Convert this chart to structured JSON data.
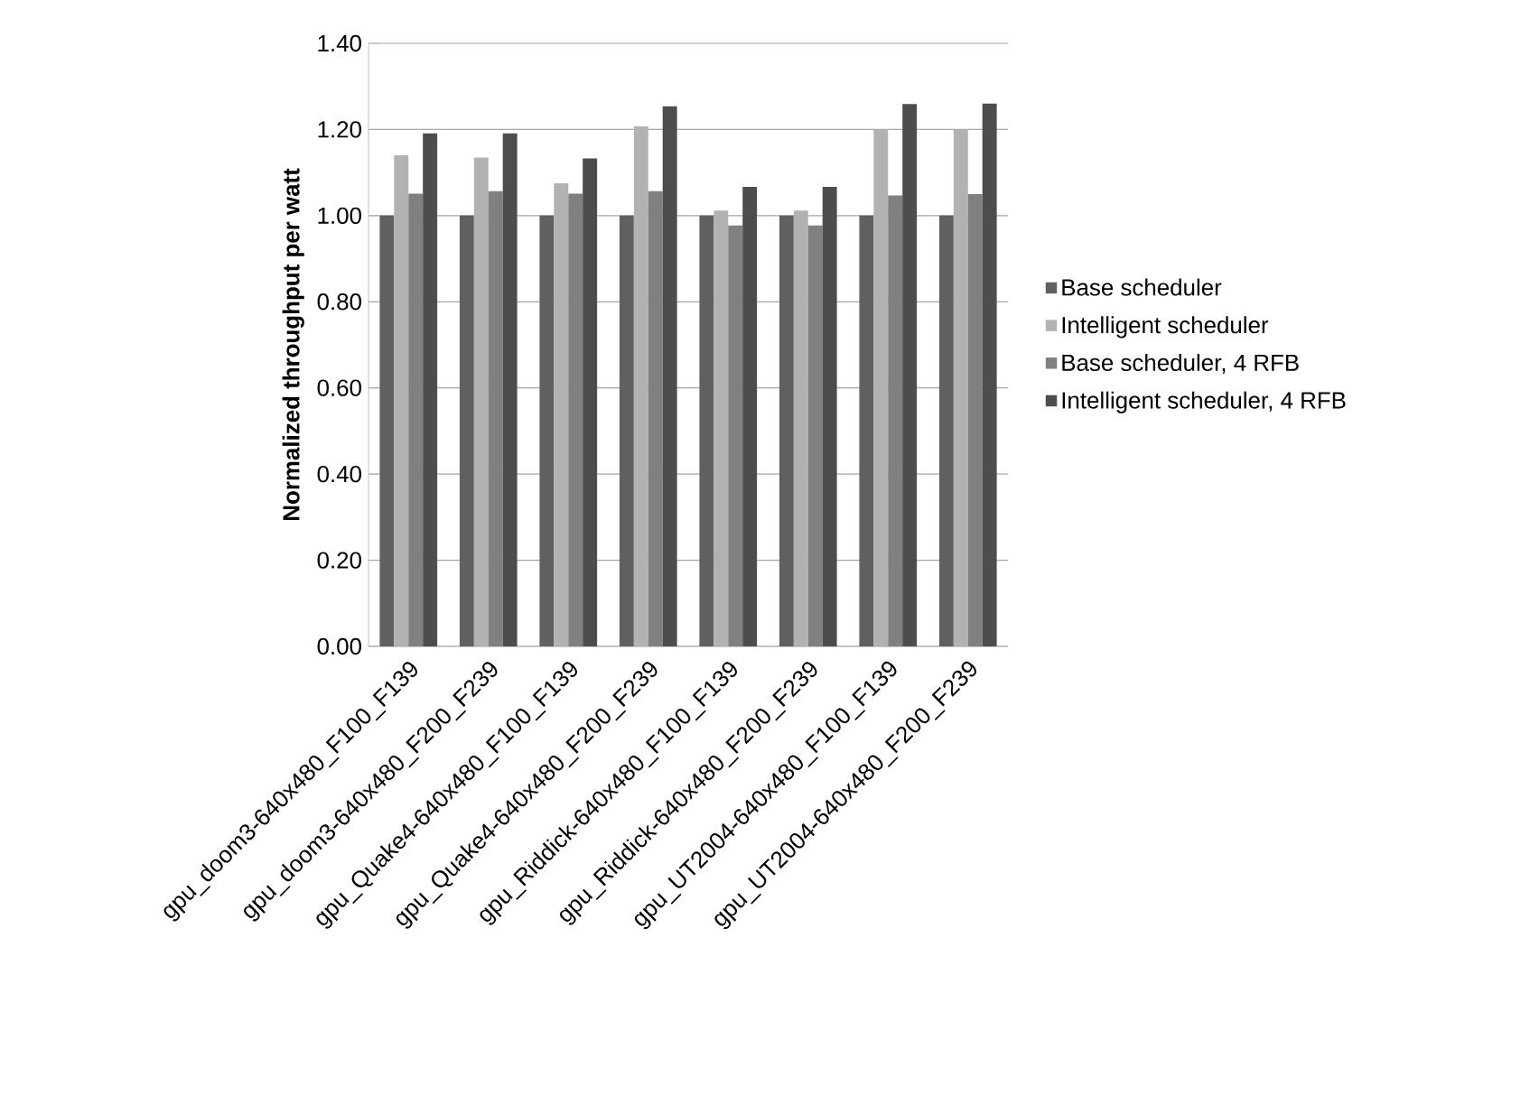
{
  "chart_data": {
    "type": "bar",
    "ylabel": "Normalized throughput per watt",
    "categories": [
      "gpu_doom3-640x480_F100_F139",
      "gpu_doom3-640x480_F200_F239",
      "gpu_Quake4-640x480_F100_F139",
      "gpu_Quake4-640x480_F200_F239",
      "gpu_Riddick-640x480_F100_F139",
      "gpu_Riddick-640x480_F200_F239",
      "gpu_UT2004-640x480_F100_F139",
      "gpu_UT2004-640x480_F200_F239"
    ],
    "series": [
      {
        "name": "Base scheduler",
        "color": "#606060",
        "values": [
          1.0,
          1.0,
          1.0,
          1.0,
          1.0,
          1.0,
          1.0,
          1.0
        ]
      },
      {
        "name": "Intelligent scheduler",
        "color": "#b2b2b2",
        "values": [
          1.14,
          1.135,
          1.075,
          1.207,
          1.012,
          1.012,
          1.2,
          1.2
        ]
      },
      {
        "name": "Base scheduler, 4 RFB",
        "color": "#808080",
        "values": [
          1.051,
          1.057,
          1.051,
          1.057,
          0.977,
          0.977,
          1.047,
          1.05
        ]
      },
      {
        "name": "Intelligent scheduler, 4 RFB",
        "color": "#4d4d4d",
        "values": [
          1.191,
          1.191,
          1.133,
          1.254,
          1.067,
          1.067,
          1.259,
          1.26
        ]
      }
    ],
    "ylim": [
      0,
      1.4
    ],
    "yticks": [
      {
        "value": 0,
        "label": "0.00"
      },
      {
        "value": 0.2,
        "label": "0.20"
      },
      {
        "value": 0.4,
        "label": "0.40"
      },
      {
        "value": 0.6,
        "label": "0.60"
      },
      {
        "value": 0.8,
        "label": "0.80"
      },
      {
        "value": 1.0,
        "label": "1.00"
      },
      {
        "value": 1.2,
        "label": "1.20"
      },
      {
        "value": 1.4,
        "label": "1.40"
      }
    ],
    "grid": "y",
    "legend": "right"
  }
}
